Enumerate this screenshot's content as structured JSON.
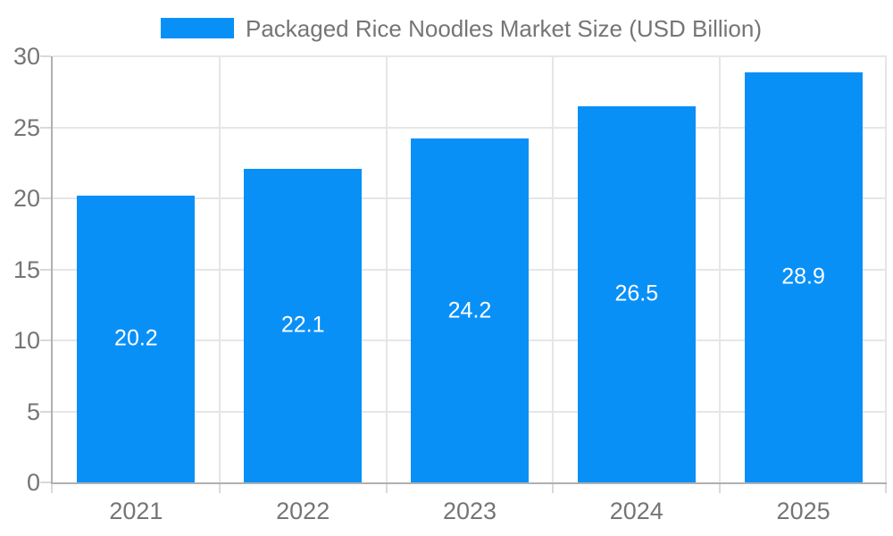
{
  "legend": {
    "label": "Packaged Rice Noodles Market Size (USD Billion)"
  },
  "chart_data": {
    "type": "bar",
    "categories": [
      "2021",
      "2022",
      "2023",
      "2024",
      "2025"
    ],
    "values": [
      20.2,
      22.1,
      24.2,
      26.5,
      28.9
    ],
    "series_name": "Packaged Rice Noodles Market Size (USD Billion)",
    "title": "",
    "xlabel": "",
    "ylabel": "",
    "ylim": [
      0,
      30
    ],
    "yticks": [
      0,
      5,
      10,
      15,
      20,
      25,
      30
    ],
    "grid": true,
    "legend_position": "top",
    "value_labels": "inside-center"
  },
  "colors": {
    "bar": "#0990f7",
    "axis_text": "#757575",
    "value_text": "#ffffff",
    "grid_line": "#e6e6e6",
    "axis_line": "#b0b0b0",
    "tick": "#d9d9d9",
    "background": "#ffffff"
  }
}
